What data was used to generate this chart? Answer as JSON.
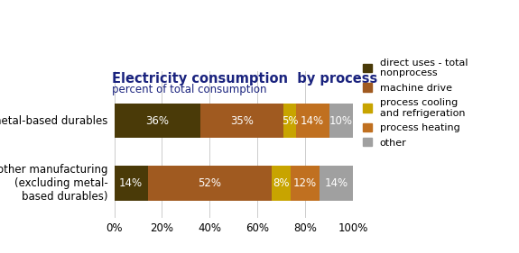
{
  "title": "Electricity consumption  by process",
  "subtitle": "percent of total consumption",
  "categories": [
    "metal-based durables",
    "other manufacturing\n(excluding metal-\nbased durables)"
  ],
  "segments": [
    {
      "label": "direct uses - total\nnonprocess",
      "color": "#4a3a08",
      "values": [
        36,
        14
      ]
    },
    {
      "label": "machine drive",
      "color": "#a05a20",
      "values": [
        35,
        52
      ]
    },
    {
      "label": "process cooling\nand refrigeration",
      "color": "#c8a400",
      "values": [
        5,
        8
      ]
    },
    {
      "label": "process heating",
      "color": "#c07020",
      "values": [
        14,
        12
      ]
    },
    {
      "label": "other",
      "color": "#a0a0a0",
      "values": [
        10,
        14
      ]
    }
  ],
  "bar_height": 0.55,
  "xlim": [
    0,
    100
  ],
  "xticks": [
    0,
    20,
    40,
    60,
    80,
    100
  ],
  "xticklabels": [
    "0%",
    "20%",
    "40%",
    "60%",
    "80%",
    "100%"
  ],
  "background_color": "#ffffff",
  "title_color": "#1a237e",
  "subtitle_color": "#1a237e",
  "bar_label_color": "#ffffff",
  "bar_label_fontsize": 8.5,
  "title_fontsize": 10.5,
  "subtitle_fontsize": 8.5,
  "legend_fontsize": 8,
  "ytick_fontsize": 8.5,
  "xtick_fontsize": 8.5
}
